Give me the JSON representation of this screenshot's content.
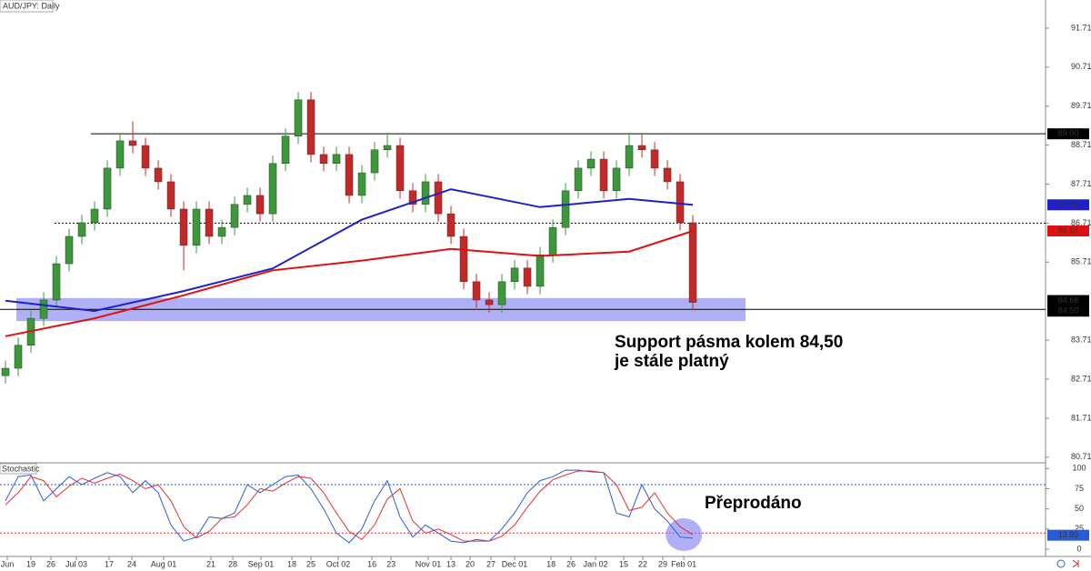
{
  "chart_data": [
    {
      "type": "candlestick",
      "title": "AUD/JPY: Daily",
      "open": [
        82.8,
        82.99,
        83.58,
        84.27,
        84.74,
        85.67,
        86.37,
        86.72,
        87.07,
        88.12,
        88.82,
        88.7,
        88.12,
        87.77,
        87.07,
        86.14,
        87.07,
        86.37,
        86.6,
        87.19,
        87.42,
        86.95,
        88.24,
        88.94,
        89.87,
        88.47,
        88.24,
        88.47,
        87.42,
        88.0,
        88.59,
        88.7,
        87.54,
        87.19,
        87.77,
        86.95,
        86.37,
        85.21,
        84.74,
        84.62,
        85.21,
        85.56,
        85.09,
        85.9,
        86.6,
        87.54,
        88.12,
        88.35,
        87.54,
        88.12,
        88.7,
        88.59,
        88.12,
        87.77,
        86.72
      ],
      "high": [
        83.19,
        83.78,
        84.47,
        84.94,
        85.87,
        86.57,
        86.92,
        87.27,
        88.32,
        89.02,
        89.32,
        88.9,
        88.32,
        87.97,
        87.27,
        87.27,
        87.27,
        86.8,
        87.39,
        87.62,
        87.62,
        88.44,
        89.14,
        90.07,
        90.07,
        88.67,
        88.67,
        88.67,
        88.2,
        88.79,
        89.0,
        88.9,
        87.74,
        87.97,
        87.97,
        87.15,
        86.57,
        85.41,
        84.94,
        85.41,
        85.76,
        85.76,
        86.1,
        86.8,
        87.74,
        88.32,
        88.55,
        88.55,
        88.32,
        89.0,
        89.0,
        88.79,
        88.32,
        87.97,
        86.92
      ],
      "low": [
        82.6,
        82.79,
        83.38,
        84.07,
        84.54,
        85.47,
        86.17,
        86.52,
        86.87,
        87.92,
        88.5,
        87.92,
        87.57,
        86.87,
        85.5,
        85.94,
        86.17,
        86.17,
        86.4,
        86.99,
        86.75,
        86.75,
        88.04,
        88.74,
        88.27,
        88.04,
        88.04,
        87.22,
        87.22,
        87.8,
        88.39,
        87.34,
        86.99,
        86.99,
        86.75,
        86.17,
        85.01,
        84.54,
        84.42,
        84.42,
        85.01,
        84.89,
        84.89,
        85.7,
        86.4,
        87.34,
        87.92,
        87.34,
        87.34,
        87.92,
        88.39,
        87.92,
        87.57,
        86.52,
        84.48
      ],
      "close": [
        82.99,
        83.58,
        84.27,
        84.74,
        85.67,
        86.37,
        86.72,
        87.07,
        88.12,
        88.82,
        88.7,
        88.12,
        87.77,
        87.07,
        86.14,
        87.07,
        86.37,
        86.6,
        87.19,
        87.42,
        86.95,
        88.24,
        88.94,
        89.87,
        88.47,
        88.24,
        88.47,
        87.42,
        88.0,
        88.59,
        88.7,
        87.54,
        87.19,
        87.77,
        86.95,
        86.37,
        85.21,
        84.74,
        84.62,
        85.21,
        85.56,
        85.09,
        85.9,
        86.6,
        87.54,
        88.12,
        88.35,
        87.54,
        88.12,
        88.7,
        88.59,
        88.12,
        87.77,
        86.72,
        84.68
      ],
      "up_color": "#3a9a3a",
      "down_color": "#c62828",
      "lines": [
        {
          "color": "#1f1fcc",
          "x": [
            0,
            7,
            14,
            21,
            28,
            35,
            42,
            49,
            54
          ],
          "values": [
            84.72,
            84.46,
            84.97,
            85.55,
            86.8,
            87.58,
            87.12,
            87.33,
            87.18
          ]
        },
        {
          "color": "#e01010",
          "x": [
            0,
            7,
            14,
            21,
            28,
            35,
            42,
            49,
            54
          ],
          "values": [
            83.81,
            84.27,
            84.86,
            85.5,
            85.75,
            86.05,
            85.87,
            85.98,
            86.51
          ]
        }
      ],
      "levels": [
        {
          "value": 89,
          "label": "89.00",
          "style": "solid"
        },
        {
          "value": 86.71,
          "style": "dotted"
        },
        {
          "value": 84.5,
          "label": "84.50",
          "style": "solid"
        }
      ],
      "zone": {
        "low": 84.2,
        "high": 84.79,
        "color": "#7b7bf0"
      },
      "ylim": [
        80.59,
        92.43
      ],
      "yticks": [
        91.71,
        90.71,
        89.71,
        88.71,
        87.71,
        86.71,
        85.71,
        83.71,
        82.71,
        81.71,
        80.71
      ],
      "xlim": [
        -0.43,
        81.71
      ],
      "xticks": [
        {
          "value": 0.14,
          "label": "Jun"
        },
        {
          "value": 2,
          "label": "19"
        },
        {
          "value": 3.57,
          "label": "26"
        },
        {
          "value": 5.57,
          "label": "Jul 03"
        },
        {
          "value": 8.14,
          "label": "17"
        },
        {
          "value": 9.93,
          "label": "24"
        },
        {
          "value": 12.43,
          "label": "Aug 01"
        },
        {
          "value": 16.14,
          "label": "21"
        },
        {
          "value": 17.86,
          "label": "28"
        },
        {
          "value": 20.07,
          "label": "Sep 01"
        },
        {
          "value": 22.5,
          "label": "18"
        },
        {
          "value": 24,
          "label": "25"
        },
        {
          "value": 26.14,
          "label": "Oct 02"
        },
        {
          "value": 28.79,
          "label": "16"
        },
        {
          "value": 30.29,
          "label": "23"
        },
        {
          "value": 33.21,
          "label": "Nov 01"
        },
        {
          "value": 35,
          "label": "13"
        },
        {
          "value": 36.5,
          "label": "20"
        },
        {
          "value": 38.14,
          "label": "27"
        },
        {
          "value": 40,
          "label": "Dec 01"
        },
        {
          "value": 42.86,
          "label": "18"
        },
        {
          "value": 44.43,
          "label": "26"
        },
        {
          "value": 46.36,
          "label": "Jan 02"
        },
        {
          "value": 48.57,
          "label": "15"
        },
        {
          "value": 50.07,
          "label": "22"
        },
        {
          "value": 51.64,
          "label": "29"
        },
        {
          "value": 53.29,
          "label": "Feb 01"
        }
      ],
      "annotations": [
        "Support pásma kolem 84,50",
        "je stále platný"
      ]
    },
    {
      "type": "line",
      "title": "Stochastic",
      "series": [
        {
          "color": "#2a5bd7",
          "values": [
            60,
            90,
            92,
            60,
            75,
            90,
            80,
            88,
            95,
            90,
            70,
            85,
            70,
            30,
            10,
            15,
            40,
            38,
            45,
            80,
            70,
            80,
            90,
            92,
            75,
            50,
            20,
            8,
            25,
            60,
            85,
            40,
            15,
            30,
            20,
            10,
            8,
            12,
            10,
            25,
            45,
            70,
            85,
            90,
            98,
            98,
            96,
            95,
            45,
            40,
            80,
            50,
            35,
            15,
            13.93
          ]
        },
        {
          "color": "#e03030",
          "values": [
            55,
            70,
            90,
            85,
            65,
            78,
            88,
            82,
            88,
            93,
            85,
            75,
            80,
            60,
            28,
            14,
            22,
            38,
            40,
            55,
            75,
            72,
            82,
            90,
            88,
            70,
            45,
            22,
            12,
            30,
            62,
            75,
            35,
            20,
            25,
            18,
            10,
            10,
            10,
            16,
            30,
            52,
            72,
            86,
            92,
            97,
            97,
            95,
            80,
            48,
            52,
            70,
            45,
            28,
            18
          ]
        }
      ],
      "levels": [
        {
          "value": 80,
          "color": "#2a5bd7"
        },
        {
          "value": 20,
          "color": "#e03030"
        }
      ],
      "ylim": [
        -9,
        106
      ],
      "yticks": [
        100,
        75,
        50,
        25,
        0
      ],
      "annotations": [
        "Přeprodáno"
      ]
    }
  ]
}
